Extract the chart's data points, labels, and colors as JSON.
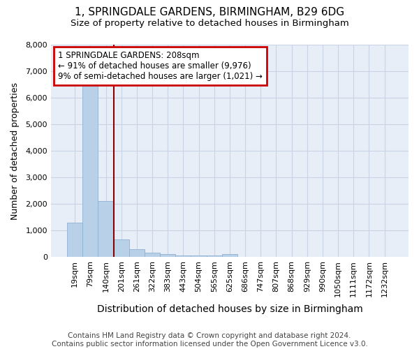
{
  "title": "1, SPRINGDALE GARDENS, BIRMINGHAM, B29 6DG",
  "subtitle": "Size of property relative to detached houses in Birmingham",
  "xlabel": "Distribution of detached houses by size in Birmingham",
  "ylabel": "Number of detached properties",
  "footnote": "Contains HM Land Registry data © Crown copyright and database right 2024.\nContains public sector information licensed under the Open Government Licence v3.0.",
  "categories": [
    "19sqm",
    "79sqm",
    "140sqm",
    "201sqm",
    "261sqm",
    "322sqm",
    "383sqm",
    "443sqm",
    "504sqm",
    "565sqm",
    "625sqm",
    "686sqm",
    "747sqm",
    "807sqm",
    "868sqm",
    "929sqm",
    "990sqm",
    "1050sqm",
    "1111sqm",
    "1172sqm",
    "1232sqm"
  ],
  "values": [
    1300,
    6600,
    2100,
    650,
    300,
    150,
    100,
    50,
    50,
    50,
    100,
    0,
    0,
    0,
    0,
    0,
    0,
    0,
    0,
    0,
    0
  ],
  "bar_color": "#b8d0e8",
  "bar_edge_color": "#90b0d0",
  "vline_x_index": 2.5,
  "vline_color": "#8B0000",
  "annotation_text": "1 SPRINGDALE GARDENS: 208sqm\n← 91% of detached houses are smaller (9,976)\n9% of semi-detached houses are larger (1,021) →",
  "annotation_box_color": "#cc0000",
  "ylim": [
    0,
    8000
  ],
  "yticks": [
    0,
    1000,
    2000,
    3000,
    4000,
    5000,
    6000,
    7000,
    8000
  ],
  "grid_color": "#c8d4e4",
  "background_color": "#e8eef8",
  "title_fontsize": 11,
  "subtitle_fontsize": 9.5,
  "xlabel_fontsize": 10,
  "ylabel_fontsize": 9,
  "footnote_fontsize": 7.5,
  "tick_fontsize": 8
}
